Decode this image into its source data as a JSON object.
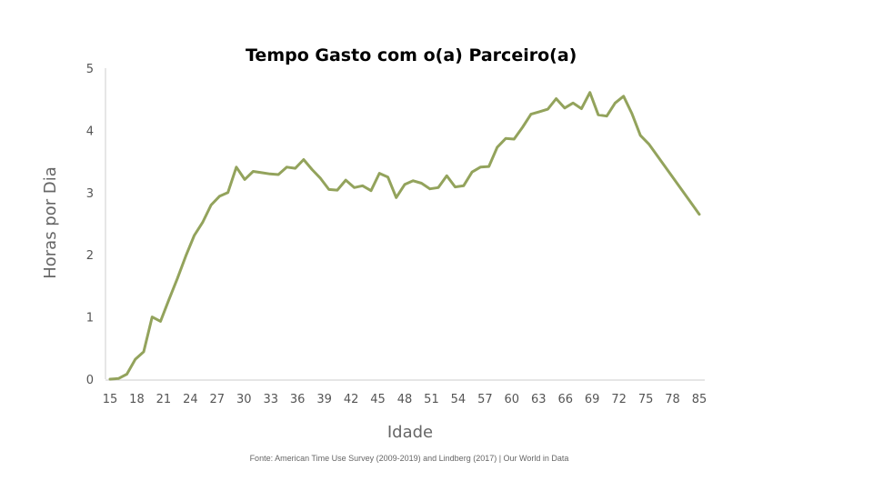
{
  "chart_data": {
    "type": "line",
    "title": "Tempo Gasto com o(a) Parceiro(a)",
    "xlabel": "Idade",
    "ylabel": "Horas por Dia",
    "source": "Fonte: American Time Use Survey (2009-2019) and Lindberg (2017) | Our World in Data",
    "xlim": [
      15,
      85
    ],
    "ylim": [
      0,
      5
    ],
    "x_ticks": [
      "15",
      "18",
      "21",
      "24",
      "27",
      "30",
      "33",
      "36",
      "39",
      "42",
      "45",
      "48",
      "51",
      "54",
      "57",
      "60",
      "63",
      "66",
      "69",
      "72",
      "75",
      "78",
      "85"
    ],
    "y_ticks": [
      "0",
      "1",
      "2",
      "3",
      "4",
      "5"
    ],
    "grid": false,
    "series_color": "#93a35c",
    "series": [
      {
        "x": [
          15,
          16,
          17,
          18,
          19,
          20,
          21,
          22,
          23,
          24,
          25,
          26,
          27,
          28,
          29,
          30,
          31,
          32,
          33,
          34,
          35,
          36,
          37,
          38,
          39,
          40,
          41,
          42,
          43,
          44,
          45,
          46,
          47,
          48,
          49,
          50,
          51,
          52,
          53,
          54,
          55,
          56,
          57,
          58,
          59,
          60,
          61,
          62,
          63,
          64,
          65,
          66,
          67,
          68,
          69,
          70,
          71,
          72,
          73,
          74,
          75,
          76,
          77,
          78,
          79,
          85
        ],
        "values": [
          0.0,
          0.01,
          0.08,
          0.32,
          0.44,
          1.0,
          0.93,
          1.28,
          1.62,
          1.98,
          2.31,
          2.52,
          2.8,
          2.94,
          3.0,
          3.41,
          3.21,
          3.34,
          3.32,
          3.3,
          3.29,
          3.41,
          3.39,
          3.53,
          3.37,
          3.23,
          3.05,
          3.04,
          3.2,
          3.08,
          3.11,
          3.03,
          3.31,
          3.25,
          2.92,
          3.13,
          3.19,
          3.15,
          3.06,
          3.08,
          3.27,
          3.09,
          3.11,
          3.33,
          3.41,
          3.42,
          3.73,
          3.87,
          3.86,
          4.05,
          4.26,
          4.3,
          4.34,
          4.51,
          4.36,
          4.44,
          4.35,
          4.61,
          4.25,
          4.23,
          4.44,
          4.55,
          4.27,
          3.92,
          3.78,
          2.65
        ]
      }
    ]
  }
}
